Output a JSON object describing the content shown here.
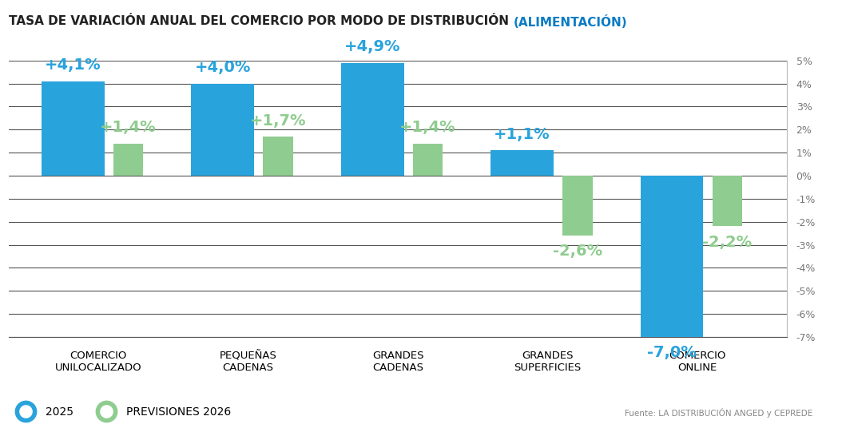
{
  "chart_data": {
    "type": "bar",
    "title": "TASA DE VARIACIÓN ANUAL DEL COMERCIO POR MODO DE DISTRIBUCIÓN",
    "subtitle": "(ALIMENTACIÓN)",
    "categories": [
      "COMERCIO\nUNILOCALIZADO",
      "PEQUEÑAS\nCADENAS",
      "GRANDES\nCADENAS",
      "GRANDES\nSUPERFICIES",
      "COMERCIO\nONLINE"
    ],
    "series": [
      {
        "name": "2025",
        "color": "#29a3dc",
        "values": [
          4.1,
          4.0,
          4.9,
          1.1,
          -7.0
        ],
        "value_labels": [
          "+4,1%",
          "+4,0%",
          "+4,9%",
          "+1,1%",
          "-7,0%"
        ]
      },
      {
        "name": "PREVISIONES 2026",
        "color": "#8fcc8f",
        "values": [
          1.4,
          1.7,
          1.4,
          -2.6,
          -2.2
        ],
        "value_labels": [
          "+1,4%",
          "+1,7%",
          "+1,4%",
          "-2,6%",
          "-2,2%"
        ]
      }
    ],
    "ylim": [
      -7,
      5
    ],
    "yticks": [
      {
        "value": 5,
        "label": "5%"
      },
      {
        "value": 4,
        "label": "4%"
      },
      {
        "value": 3,
        "label": "3%"
      },
      {
        "value": 2,
        "label": "2%"
      },
      {
        "value": 1,
        "label": "1%"
      },
      {
        "value": 0,
        "label": "0%"
      },
      {
        "value": -1,
        "label": "-1%"
      },
      {
        "value": -2,
        "label": "-2%"
      },
      {
        "value": -3,
        "label": "-3%"
      },
      {
        "value": -4,
        "label": "-4%"
      },
      {
        "value": -5,
        "label": "-5%"
      },
      {
        "value": -6,
        "label": "-6%"
      },
      {
        "value": -7,
        "label": "-7%"
      }
    ],
    "grid": true,
    "data_labels": true,
    "legend": "lower left",
    "source": "Fuente: LA DISTRIBUCIÓN ANGED y CEPREDE"
  }
}
